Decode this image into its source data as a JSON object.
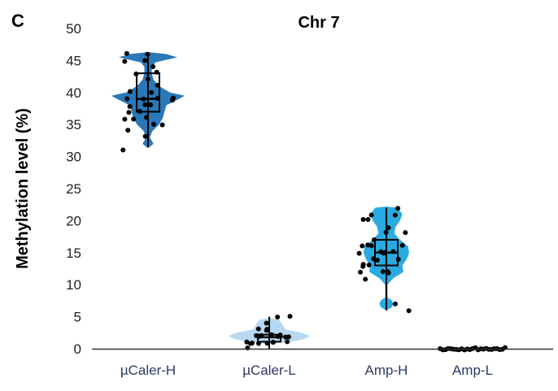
{
  "chart_data": {
    "type": "violin",
    "panel_label": "C",
    "title": "Chr 7",
    "xlabel": "",
    "ylabel": "Methylation level (%)",
    "ylim": [
      0,
      50
    ],
    "yticks": [
      0,
      5,
      10,
      15,
      20,
      25,
      30,
      35,
      40,
      45,
      50
    ],
    "grid": false,
    "categories": [
      "µCaler-H",
      "µCaler-L",
      "Amp-H",
      "Amp-L"
    ],
    "series": [
      {
        "name": "µCaler-H",
        "color": "#2a78b8",
        "box": {
          "min": 31.5,
          "q1": 37,
          "median": 39,
          "q3": 43,
          "max": 46
        },
        "density": [
          [
            31.3,
            0.0
          ],
          [
            32,
            0.15
          ],
          [
            33,
            0.05
          ],
          [
            34,
            0.12
          ],
          [
            35,
            0.3
          ],
          [
            36,
            0.4
          ],
          [
            37,
            0.45
          ],
          [
            38,
            0.5
          ],
          [
            39,
            0.85
          ],
          [
            39.5,
            1.0
          ],
          [
            40,
            0.6
          ],
          [
            41,
            0.3
          ],
          [
            42,
            0.15
          ],
          [
            43,
            0.1
          ],
          [
            44,
            0.1
          ],
          [
            44.7,
            0.2
          ],
          [
            45.5,
            0.8
          ],
          [
            46,
            0.5
          ],
          [
            46.3,
            0.0
          ]
        ],
        "points": [
          46,
          46,
          45,
          45,
          44,
          43,
          43,
          42,
          41,
          40,
          40,
          39,
          39,
          39,
          39,
          39,
          38,
          38,
          38,
          37,
          37,
          36,
          36,
          36,
          35,
          35,
          34,
          33,
          31
        ]
      },
      {
        "name": "µCaler-L",
        "color": "#b7d8f0",
        "box": {
          "min": 0,
          "q1": 1.1,
          "median": 1.8,
          "q3": 2.2,
          "max": 5
        },
        "density": [
          [
            0.7,
            0.0
          ],
          [
            1,
            0.45
          ],
          [
            1.5,
            0.85
          ],
          [
            2,
            1.0
          ],
          [
            2.5,
            0.8
          ],
          [
            3,
            0.4
          ],
          [
            3.5,
            0.35
          ],
          [
            4,
            0.3
          ],
          [
            4.5,
            0.25
          ],
          [
            4.8,
            0.0
          ]
        ],
        "points": [
          5,
          5,
          4,
          3,
          3,
          3,
          2,
          2,
          2,
          2,
          2,
          2,
          2,
          2,
          2,
          1,
          1,
          1,
          1,
          1,
          1,
          1,
          1,
          0
        ]
      },
      {
        "name": "Amp-H",
        "color": "#29aae1",
        "box": {
          "min": 6,
          "q1": 13,
          "median": 15,
          "q3": 17,
          "max": 22
        },
        "density": [
          [
            6,
            0.0
          ],
          [
            6.5,
            0.25
          ],
          [
            7,
            0.3
          ],
          [
            7.5,
            0.25
          ],
          [
            8,
            0.05
          ],
          [
            10,
            0.05
          ],
          [
            11,
            0.3
          ],
          [
            12,
            0.75
          ],
          [
            13,
            0.7
          ],
          [
            14,
            0.9
          ],
          [
            15,
            1.0
          ],
          [
            16,
            0.95
          ],
          [
            17,
            0.6
          ],
          [
            18,
            0.35
          ],
          [
            19,
            0.4
          ],
          [
            20,
            0.6
          ],
          [
            21,
            0.7
          ],
          [
            22,
            0.5
          ],
          [
            22.2,
            0.0
          ]
        ],
        "points": [
          22,
          21,
          21,
          20,
          20,
          19,
          18,
          18,
          17,
          16,
          16,
          16,
          16,
          15,
          15,
          15,
          15,
          15,
          14,
          14,
          14,
          13,
          13,
          13,
          12,
          12,
          12,
          12,
          11,
          7,
          6
        ]
      },
      {
        "name": "Amp-L",
        "color": "#29aae1",
        "box": {
          "min": 0,
          "q1": 0,
          "median": 0,
          "q3": 0,
          "max": 0
        },
        "density": [],
        "points": [
          0,
          0,
          0,
          0,
          0,
          0,
          0,
          0,
          0,
          0,
          0,
          0,
          0,
          0,
          0,
          0,
          0,
          0,
          0,
          0,
          0,
          0,
          0,
          0,
          0
        ]
      }
    ]
  }
}
